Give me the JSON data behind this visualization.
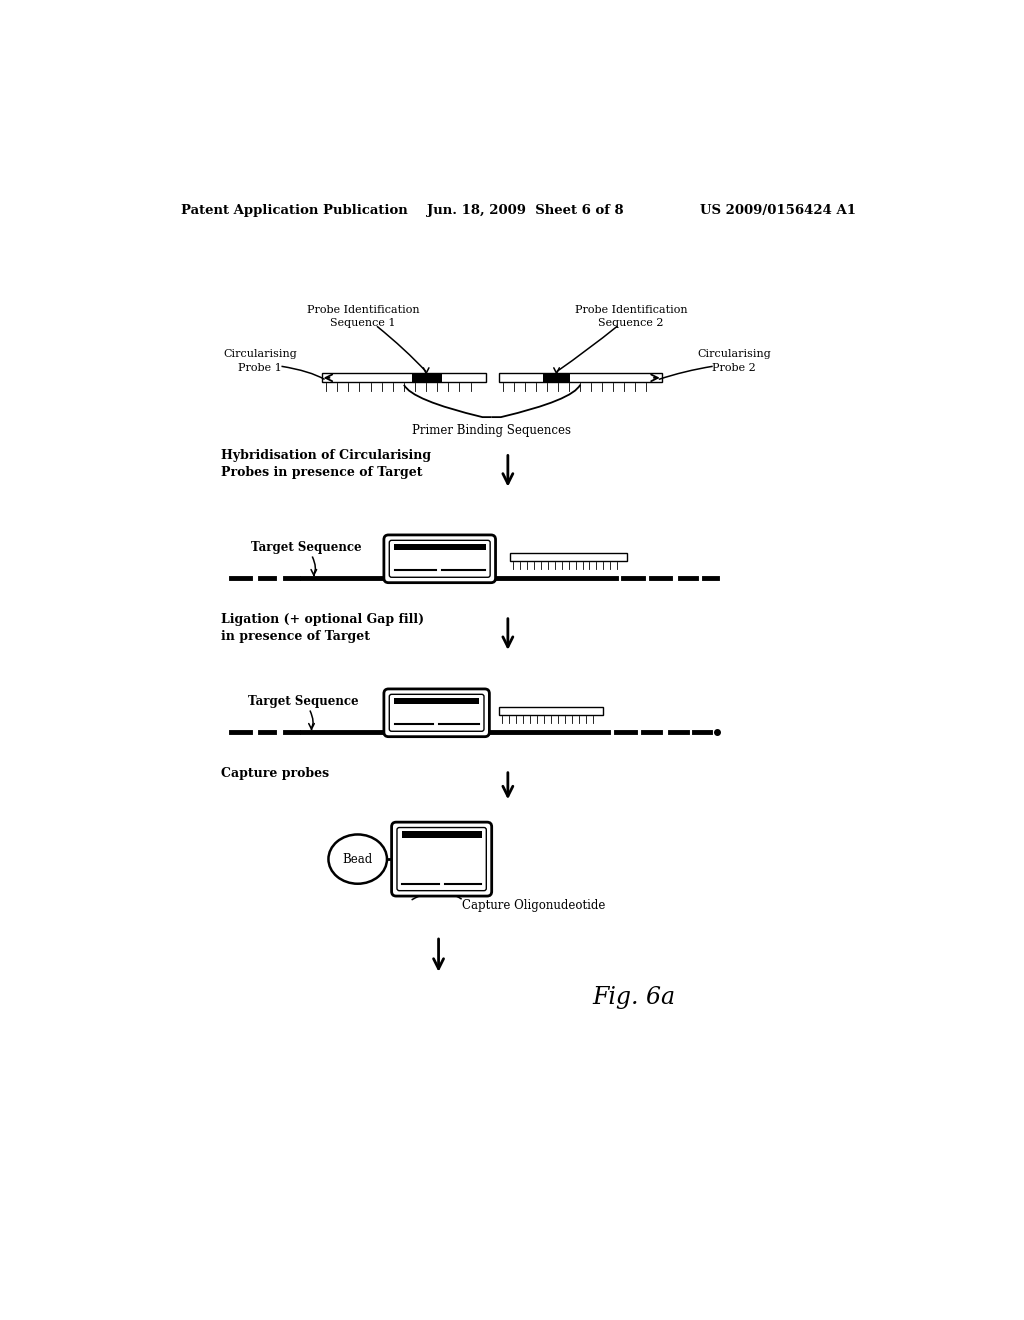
{
  "header_left": "Patent Application Publication",
  "header_mid": "Jun. 18, 2009  Sheet 6 of 8",
  "header_right": "US 2009/0156424 A1",
  "fig_label": "Fig. 6a",
  "background_color": "#ffffff",
  "text_color": "#000000"
}
